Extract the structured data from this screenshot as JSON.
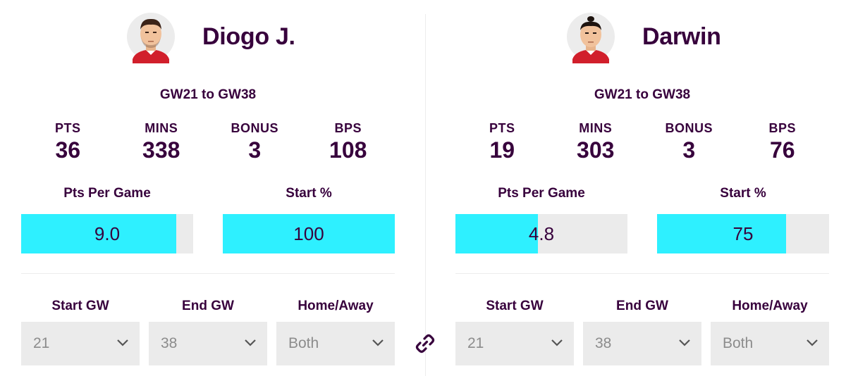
{
  "players": [
    {
      "name": "Diogo J.",
      "range": "GW21 to GW38",
      "stats": [
        {
          "label": "PTS",
          "value": "36"
        },
        {
          "label": "MINS",
          "value": "338"
        },
        {
          "label": "BONUS",
          "value": "3"
        },
        {
          "label": "BPS",
          "value": "108"
        }
      ],
      "pts_per_game": {
        "label": "Pts Per Game",
        "value": "9.0",
        "fill_fraction": 0.9
      },
      "start_pct": {
        "label": "Start %",
        "value": "100",
        "fill_fraction": 1.0
      },
      "filters": [
        {
          "label": "Start GW",
          "value": "21"
        },
        {
          "label": "End GW",
          "value": "38"
        },
        {
          "label": "Home/Away",
          "value": "Both"
        }
      ]
    },
    {
      "name": "Darwin",
      "range": "GW21 to GW38",
      "stats": [
        {
          "label": "PTS",
          "value": "19"
        },
        {
          "label": "MINS",
          "value": "303"
        },
        {
          "label": "BONUS",
          "value": "3"
        },
        {
          "label": "BPS",
          "value": "76"
        }
      ],
      "pts_per_game": {
        "label": "Pts Per Game",
        "value": "4.8",
        "fill_fraction": 0.48
      },
      "start_pct": {
        "label": "Start %",
        "value": "75",
        "fill_fraction": 0.75
      },
      "filters": [
        {
          "label": "Start GW",
          "value": "21"
        },
        {
          "label": "End GW",
          "value": "38"
        },
        {
          "label": "Home/Away",
          "value": "Both"
        }
      ]
    }
  ],
  "icons": {
    "link": "link-icon",
    "dropdown": "chevron-down-icon",
    "avatar": "player-avatar"
  },
  "colors": {
    "text": "#37003c",
    "bar_fill": "#2ef0ff",
    "bar_track": "#ebebeb",
    "select_bg": "#ebebeb",
    "select_text": "#8c8c8c"
  }
}
